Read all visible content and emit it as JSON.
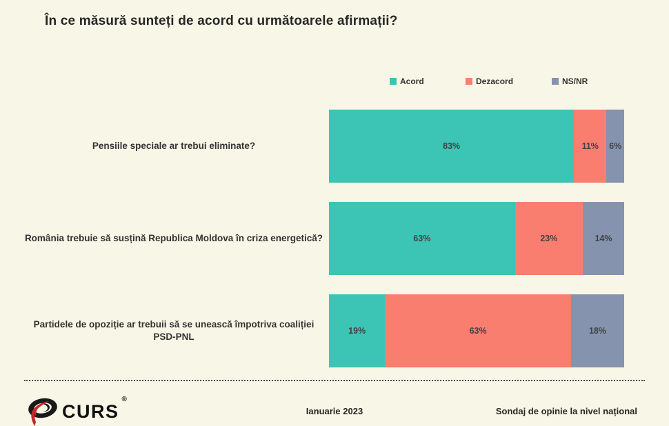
{
  "title": "În ce măsură sunteți de acord cu următoarele afirmații?",
  "colors": {
    "background": "#F8F6E7",
    "acord": "#3CC4B4",
    "dezacord": "#FA7E70",
    "ns_nr": "#8693AE",
    "text_dark": "#333333",
    "logo_red": "#C9242B",
    "logo_black": "#191919"
  },
  "chart_data": {
    "type": "bar",
    "orientation": "horizontal",
    "stacked": true,
    "value_suffix": "%",
    "xlim": [
      0,
      100
    ],
    "grid": false,
    "legend_position": "top",
    "categories": [
      "Pensiile speciale ar trebui eliminate?",
      "România trebuie să susțină Republica Moldova în criza energetică?",
      "Partidele de opoziție ar trebuii să se unească împotriva coaliției PSD-PNL"
    ],
    "series": [
      {
        "name": "Acord",
        "color": "#3CC4B4",
        "values": [
          83,
          63,
          19
        ]
      },
      {
        "name": "Dezacord",
        "color": "#FA7E70",
        "values": [
          11,
          23,
          63
        ]
      },
      {
        "name": "NS/NR",
        "color": "#8693AE",
        "values": [
          6,
          14,
          18
        ]
      }
    ]
  },
  "footer": {
    "logo_text": "CURS",
    "registered_mark": "®",
    "date": "Ianuarie 2023",
    "note": "Sondaj de opinie la nivel național"
  }
}
